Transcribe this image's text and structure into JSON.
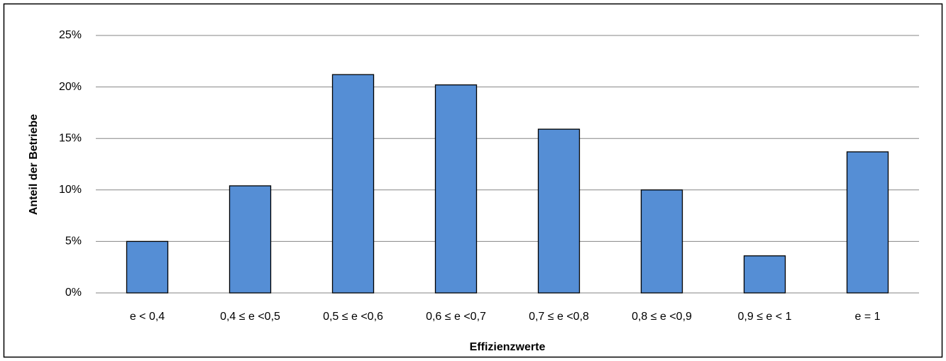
{
  "chart_data": {
    "type": "bar",
    "x_label": "Effizienzwerte",
    "y_label": "Anteil der Betriebe",
    "categories": [
      "e < 0,4",
      "0,4 ≤ e <0,5",
      "0,5 ≤ e <0,6",
      "0,6 ≤ e <0,7",
      "0,7 ≤ e <0,8",
      "0,8 ≤ e <0,9",
      "0,9 ≤ e < 1",
      "e = 1"
    ],
    "values": [
      5.0,
      10.4,
      21.2,
      20.2,
      15.9,
      10.0,
      3.6,
      13.7
    ],
    "color": "#558ed5",
    "ylim": [
      0,
      25
    ],
    "yticks": [
      {
        "value": 0,
        "label": "0%"
      },
      {
        "value": 5,
        "label": "5%"
      },
      {
        "value": 10,
        "label": "10%"
      },
      {
        "value": 15,
        "label": "15%"
      },
      {
        "value": 20,
        "label": "20%"
      },
      {
        "value": 25,
        "label": "25%"
      }
    ],
    "grid": true
  }
}
